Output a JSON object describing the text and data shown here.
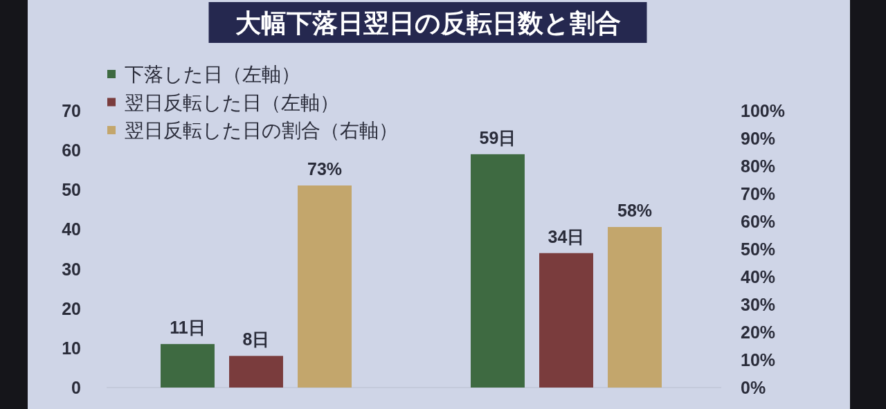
{
  "chart_data": {
    "type": "bar",
    "title": "大幅下落日翌日の反転日数と割合",
    "categories": [
      null,
      null
    ],
    "series": [
      {
        "name": "下落した日（左軸）",
        "color": "#3e6a41",
        "values": [
          11,
          59
        ],
        "value_labels": [
          "11日",
          "59日"
        ]
      },
      {
        "name": "翌日反転した日（左軸）",
        "color": "#7a3c3d",
        "values": [
          8,
          34
        ],
        "value_labels": [
          "8日",
          "34日"
        ]
      },
      {
        "name": "翌日反転した日の割合（右軸）",
        "color": "#c3a66c",
        "values": [
          73,
          58
        ],
        "value_labels": [
          "73%",
          "58%"
        ],
        "axis": "y2"
      }
    ],
    "ylim": [
      0,
      70
    ],
    "yticks": [
      0,
      10,
      20,
      30,
      40,
      50,
      60,
      70
    ],
    "y2lim": [
      0,
      100
    ],
    "y2ticks": [
      {
        "value": 0,
        "label": "0%"
      },
      {
        "value": 10,
        "label": "10%"
      },
      {
        "value": 20,
        "label": "20%"
      },
      {
        "value": 30,
        "label": "30%"
      },
      {
        "value": 40,
        "label": "40%"
      },
      {
        "value": 50,
        "label": "50%"
      },
      {
        "value": 60,
        "label": "60%"
      },
      {
        "value": 70,
        "label": "70%"
      },
      {
        "value": 80,
        "label": "80%"
      },
      {
        "value": 90,
        "label": "90%"
      },
      {
        "value": 100,
        "label": "100%"
      }
    ],
    "legend": "top left"
  }
}
